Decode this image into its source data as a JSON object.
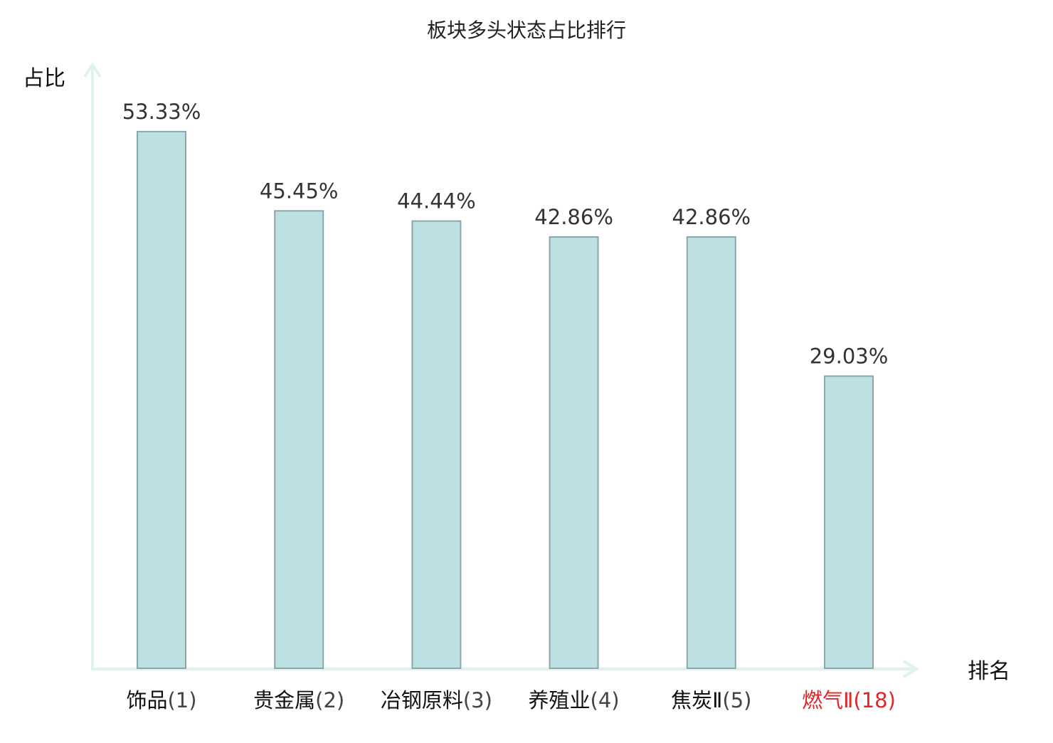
{
  "chart_data": {
    "type": "bar",
    "title": "板块多头状态占比排行",
    "xlabel": "排名",
    "ylabel": "占比",
    "categories": [
      {
        "name": "饰品",
        "rank": "(1)"
      },
      {
        "name": "贵金属",
        "rank": "(2)"
      },
      {
        "name": "冶钢原料",
        "rank": "(3)"
      },
      {
        "name": "养殖业",
        "rank": "(4)"
      },
      {
        "name": "焦炭Ⅱ",
        "rank": "(5)"
      },
      {
        "name": "燃气Ⅱ",
        "rank": "(18)"
      }
    ],
    "values": [
      53.33,
      45.45,
      44.44,
      42.86,
      42.86,
      29.03
    ],
    "value_labels": [
      "53.33%",
      "45.45%",
      "44.44%",
      "42.86%",
      "42.86%",
      "29.03%"
    ],
    "ylim": [
      0,
      60
    ],
    "grid": false,
    "highlight_index": 5,
    "colors": {
      "bar_fill": "#bde0e3",
      "bar_stroke": "#8aa8ac",
      "axis": "#dff2ef",
      "text": "#111111",
      "data_label": "#333333",
      "rank_text": "#444444",
      "highlight": "#e0262a"
    }
  }
}
